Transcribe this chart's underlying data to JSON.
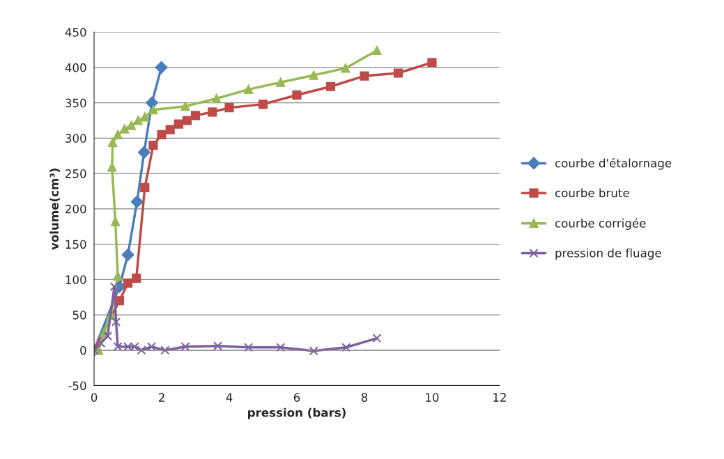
{
  "chart_data": {
    "type": "line",
    "xlabel": "pression (bars)",
    "ylabel": "volume(cm³)",
    "xlim": [
      0,
      12
    ],
    "xticks": [
      0,
      2,
      4,
      6,
      8,
      10,
      12
    ],
    "ylim": [
      -50,
      450
    ],
    "yticks": [
      -50,
      0,
      50,
      100,
      150,
      200,
      250,
      300,
      350,
      400,
      450
    ],
    "grid": "y",
    "legend": "right",
    "series": [
      {
        "name": "courbe d'étalornage",
        "color": "#4a7ebb",
        "marker": "diamond",
        "x": [
          0,
          0.25,
          0.5,
          0.75,
          1.0,
          1.27,
          1.48,
          1.71,
          1.99
        ],
        "values": [
          0,
          null,
          null,
          90,
          135,
          210,
          280,
          350,
          400
        ]
      },
      {
        "name": "courbe brute",
        "color": "#be4b48",
        "marker": "square",
        "x": [
          0,
          0.25,
          0.5,
          0.75,
          1.0,
          1.25,
          1.5,
          1.75,
          2.0,
          2.25,
          2.5,
          2.75,
          3.0,
          3.5,
          4.0,
          5.0,
          6.0,
          7.0,
          8.0,
          9.0,
          10.0
        ],
        "values": [
          0,
          null,
          null,
          70,
          95,
          102,
          230,
          290,
          305,
          312,
          320,
          325,
          332,
          337,
          343,
          348,
          361,
          373,
          388,
          392,
          407
        ]
      },
      {
        "name": "courbe corrigée",
        "color": "#98b954",
        "marker": "triangle",
        "x": [
          0.13,
          0.3,
          0.5,
          0.7,
          0.63,
          0.53,
          0.55,
          0.7,
          0.9,
          1.1,
          1.3,
          1.5,
          1.75,
          2.7,
          3.62,
          4.57,
          5.52,
          6.5,
          7.44,
          8.37
        ],
        "values": [
          0,
          25,
          50,
          105,
          182,
          259,
          294,
          305,
          313,
          318,
          325,
          330,
          340,
          345,
          356,
          369,
          379,
          389,
          399,
          424
        ]
      },
      {
        "name": "pression de fluage",
        "color": "#7d60a0",
        "marker": "cross",
        "x": [
          0,
          0.2,
          0.4,
          0.6,
          0.65,
          0.7,
          1.0,
          1.2,
          1.4,
          1.7,
          2.1,
          2.7,
          3.66,
          4.57,
          5.52,
          6.5,
          7.46,
          8.37
        ],
        "values": [
          0,
          10,
          20,
          90,
          40,
          5,
          5,
          5,
          0,
          5,
          0,
          5,
          6,
          4,
          4,
          -1,
          4,
          17
        ]
      }
    ]
  }
}
